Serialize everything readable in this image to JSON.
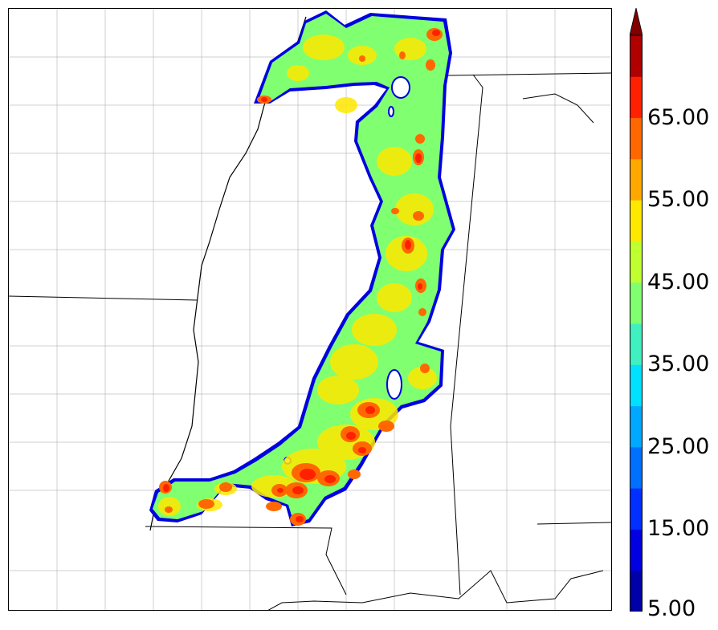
{
  "colorbar": {
    "levels": [
      5,
      10,
      15,
      20,
      25,
      30,
      35,
      40,
      45,
      50,
      55,
      60,
      65,
      70
    ],
    "colors": [
      "#0000a8",
      "#0000e0",
      "#0030ff",
      "#0070ff",
      "#00a8ff",
      "#00e0ff",
      "#40f0c0",
      "#80ff70",
      "#c0ff30",
      "#ffe800",
      "#ffa800",
      "#ff6800",
      "#ff2000",
      "#b00000"
    ],
    "extend_color": "#800000",
    "tick_labels": [
      "5.00",
      "15.00",
      "25.00",
      "35.00",
      "45.00",
      "55.00",
      "65.00"
    ]
  },
  "map": {
    "boundary_color": "#000000",
    "county_color": "#a0a0a0",
    "field_base_color": "#80ff70"
  }
}
